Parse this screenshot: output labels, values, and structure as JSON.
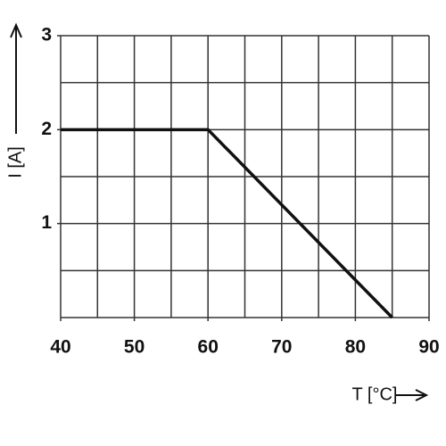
{
  "chart_data": {
    "type": "line",
    "x": [
      40,
      60,
      85
    ],
    "values": [
      2,
      2,
      0
    ],
    "color": "#111111",
    "xlabel": "T [°C]",
    "ylabel": "I [A]",
    "xlim": [
      40,
      90
    ],
    "xticks": [
      40,
      50,
      60,
      70,
      80,
      90
    ],
    "xminor": [
      45,
      55,
      65,
      75,
      85
    ],
    "ylim": [
      0,
      3
    ],
    "yticks": [
      1,
      2,
      3
    ],
    "yminor": [
      0,
      0.5,
      1.5,
      2.5
    ],
    "grid": true
  }
}
